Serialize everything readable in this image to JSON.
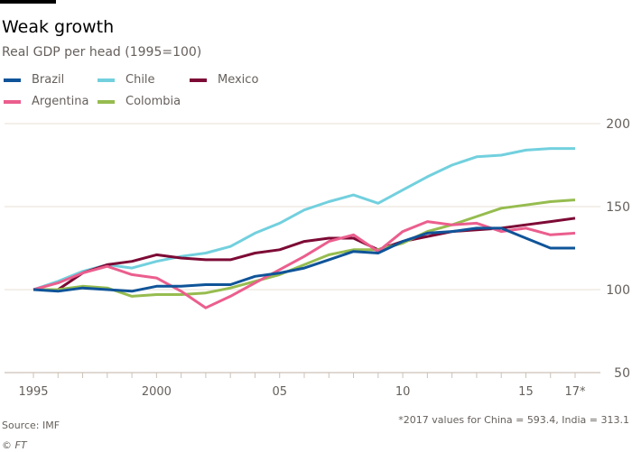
{
  "chart_data": {
    "type": "line",
    "title": "Weak growth",
    "subtitle": "Real GDP per head (1995=100)",
    "xlabel": "",
    "ylabel": "",
    "x": [
      1995,
      1996,
      1997,
      1998,
      1999,
      2000,
      2001,
      2002,
      2003,
      2004,
      2005,
      2006,
      2007,
      2008,
      2009,
      2010,
      2011,
      2012,
      2013,
      2014,
      2015,
      2016,
      2017
    ],
    "xlim": [
      1995,
      2017
    ],
    "ylim": [
      50,
      200
    ],
    "x_ticks": [
      {
        "value": 1995,
        "label": "1995"
      },
      {
        "value": 2000,
        "label": "2000"
      },
      {
        "value": 2005,
        "label": "05"
      },
      {
        "value": 2010,
        "label": "10"
      },
      {
        "value": 2015,
        "label": "15"
      },
      {
        "value": 2017,
        "label": "17*"
      }
    ],
    "y_ticks": [
      {
        "value": 200,
        "label": "200"
      },
      {
        "value": 150,
        "label": "150"
      },
      {
        "value": 100,
        "label": "100"
      },
      {
        "value": 50,
        "label": "50"
      }
    ],
    "grid": true,
    "legend_placement": "top-left",
    "series": [
      {
        "name": "Brazil",
        "color": "#0f5499",
        "values": [
          100,
          99,
          101,
          100,
          99,
          102,
          102,
          103,
          103,
          108,
          110,
          113,
          118,
          123,
          122,
          129,
          134,
          135,
          137,
          137,
          131,
          125,
          125
        ]
      },
      {
        "name": "Chile",
        "color": "#72d0de",
        "values": [
          100,
          105,
          111,
          115,
          113,
          117,
          120,
          122,
          126,
          134,
          140,
          148,
          153,
          157,
          152,
          160,
          168,
          175,
          180,
          181,
          184,
          185,
          185
        ]
      },
      {
        "name": "Mexico",
        "color": "#7d0a35",
        "values": [
          100,
          100,
          110,
          115,
          117,
          121,
          119,
          118,
          118,
          122,
          124,
          129,
          131,
          131,
          124,
          129,
          132,
          135,
          136,
          137,
          139,
          141,
          143
        ]
      },
      {
        "name": "Argentina",
        "color": "#eb5e8d",
        "values": [
          100,
          104,
          110,
          114,
          109,
          107,
          99,
          89,
          96,
          104,
          112,
          120,
          129,
          133,
          123,
          135,
          141,
          139,
          140,
          135,
          137,
          133,
          134
        ]
      },
      {
        "name": "Colombia",
        "color": "#96bc4f",
        "values": [
          100,
          100,
          102,
          101,
          96,
          97,
          97,
          98,
          101,
          105,
          109,
          115,
          121,
          124,
          124,
          128,
          135,
          139,
          144,
          149,
          151,
          153,
          154
        ]
      }
    ],
    "source": "Source: IMF",
    "copyright": "© FT",
    "note": "*2017 values for China = 593.4, India = 313.1"
  }
}
